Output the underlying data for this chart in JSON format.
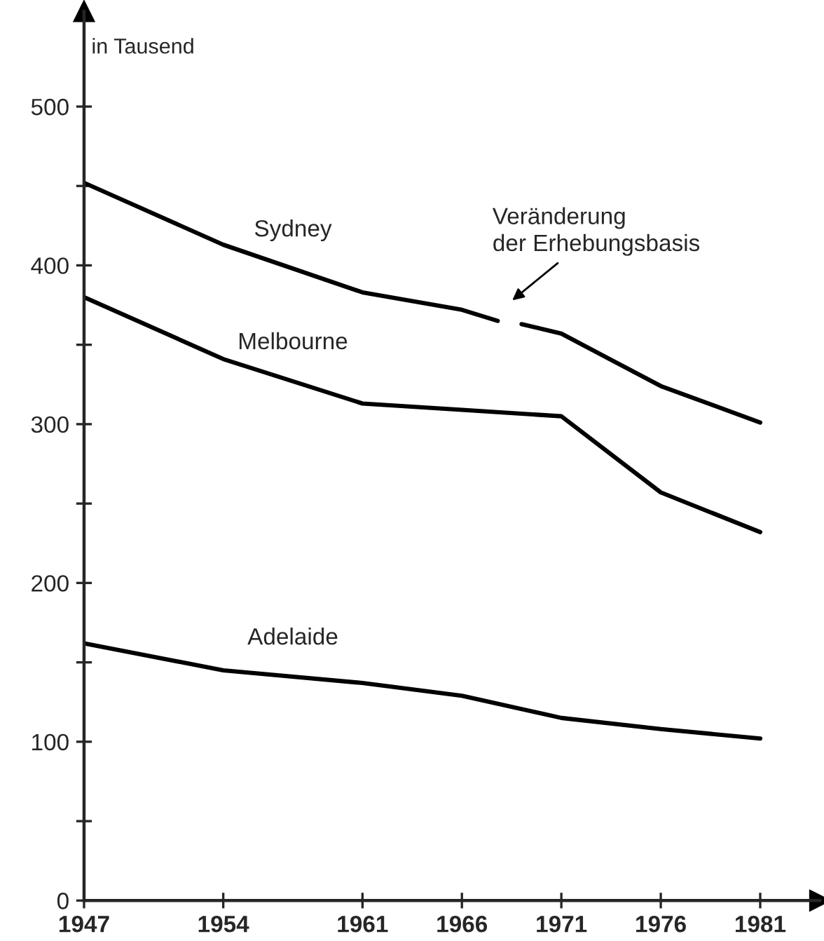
{
  "chart_data": {
    "type": "line",
    "ylabel": "in Tausend",
    "series": [
      {
        "name": "Sydney",
        "color": "#000000",
        "x": [
          1947,
          1954,
          1961,
          1966,
          1967.8,
          null,
          1969,
          1971,
          1976,
          1981
        ],
        "values": [
          452,
          413,
          383,
          372,
          365,
          null,
          363,
          357,
          324,
          301
        ]
      },
      {
        "name": "Melbourne",
        "color": "#000000",
        "x": [
          1947,
          1954,
          1961,
          1966,
          1971,
          1976,
          1981
        ],
        "values": [
          380,
          341,
          313,
          309,
          305,
          257,
          232
        ]
      },
      {
        "name": "Adelaide",
        "color": "#000000",
        "x": [
          1947,
          1954,
          1961,
          1966,
          1971,
          1976,
          1981
        ],
        "values": [
          162,
          145,
          137,
          129,
          115,
          108,
          102
        ]
      }
    ],
    "annotations": [
      "Veränderung\nder Erhebungsbasis"
    ],
    "xlim": [
      1947,
      1984
    ],
    "ylim": [
      0,
      560
    ],
    "xticks": [
      1947,
      1954,
      1961,
      1966,
      1971,
      1976,
      1981
    ],
    "yticks": [
      0,
      {
        "value": 50,
        "label": null
      },
      100,
      {
        "value": 150,
        "label": null
      },
      200,
      {
        "value": 250,
        "label": null
      },
      300,
      {
        "value": 350,
        "label": null
      },
      400,
      {
        "value": 450,
        "label": null
      },
      500
    ],
    "grid": false,
    "legend": false,
    "marker": "none",
    "line_style": "solid"
  }
}
